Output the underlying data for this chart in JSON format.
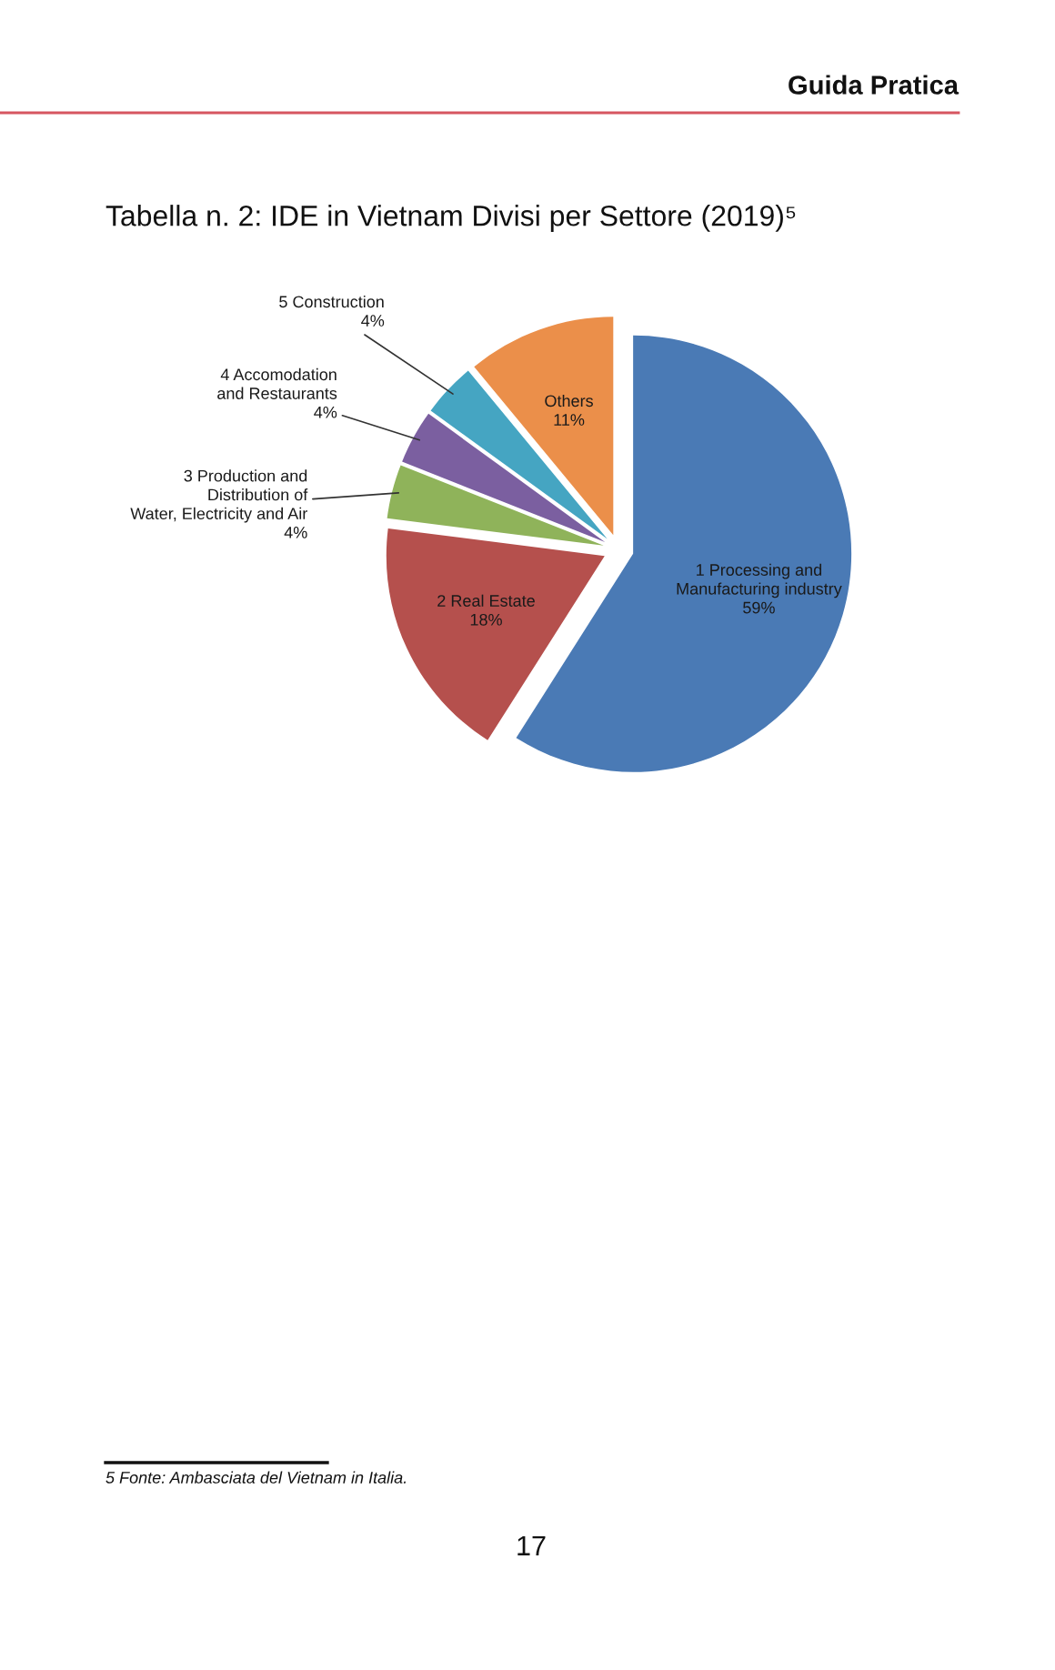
{
  "chart_data": {
    "type": "pie",
    "title": "Tabella n. 2: IDE in Vietnam Divisi per Settore (2019)⁵",
    "categories": [
      "1 Processing and\nManufacturing industry",
      "2 Real Estate",
      "3 Production and\nDistribution of\nWater, Electricity and Air",
      "4 Accomodation\nand Restaurants",
      "5 Construction",
      "Others"
    ],
    "values": [
      59,
      18,
      4,
      4,
      4,
      11
    ],
    "value_labels": [
      "59%",
      "18%",
      "4%",
      "4%",
      "4%",
      "11%"
    ],
    "colors": [
      "#4a7ab5",
      "#b5504d",
      "#8fb35a",
      "#7b5fa0",
      "#45a5c2",
      "#eb8f4a"
    ],
    "annotations": [
      "Guida Pratica",
      "5 Fonte: Ambasciata del Vietnam in Italia.",
      "17"
    ]
  }
}
